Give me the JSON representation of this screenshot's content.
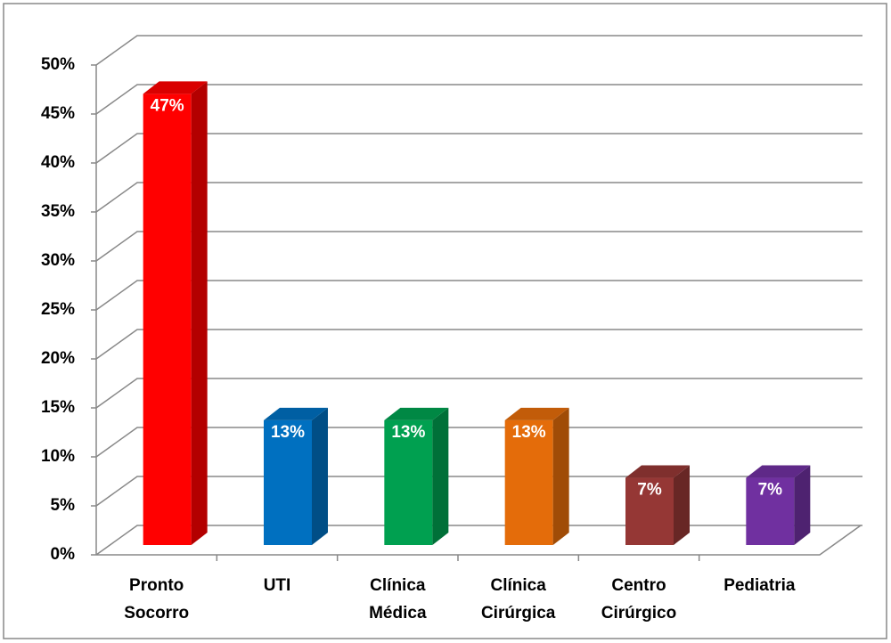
{
  "chart_data": {
    "type": "bar3d",
    "categories": [
      "Pronto Socorro",
      "UTI",
      "Clínica Médica",
      "Clínica Cirúrgica",
      "Centro Cirúrgico",
      "Pediatria"
    ],
    "values": [
      47,
      13,
      13,
      13,
      7,
      7
    ],
    "value_labels": [
      "47%",
      "13%",
      "13%",
      "13%",
      "7%",
      "7%"
    ],
    "colors": [
      "#ff0000",
      "#0070c0",
      "#00a050",
      "#e46c0a",
      "#953735",
      "#7030a0"
    ],
    "ylim": [
      0,
      50
    ],
    "yticks": [
      {
        "value": 0,
        "label": "0%"
      },
      {
        "value": 5,
        "label": "5%"
      },
      {
        "value": 10,
        "label": "10%"
      },
      {
        "value": 15,
        "label": "15%"
      },
      {
        "value": 20,
        "label": "20%"
      },
      {
        "value": 25,
        "label": "25%"
      },
      {
        "value": 30,
        "label": "30%"
      },
      {
        "value": 35,
        "label": "35%"
      },
      {
        "value": 40,
        "label": "40%"
      },
      {
        "value": 45,
        "label": "45%"
      },
      {
        "value": 50,
        "label": "50%"
      }
    ],
    "grid": true
  }
}
